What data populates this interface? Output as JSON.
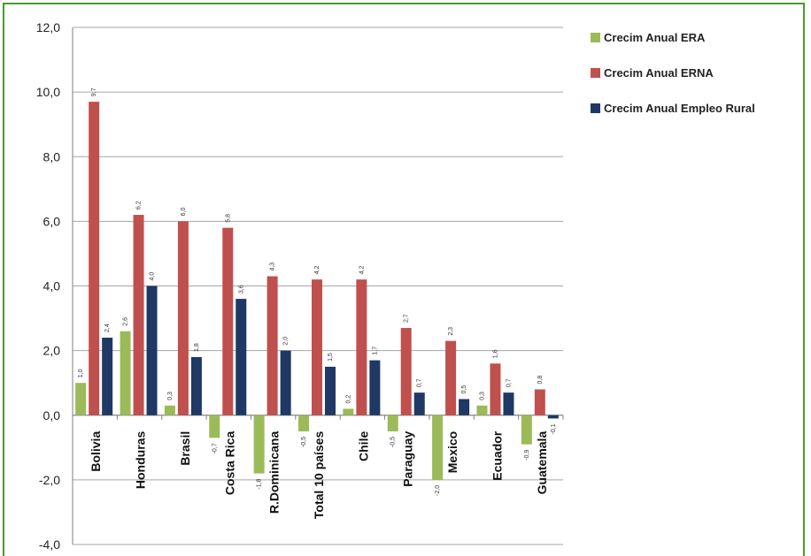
{
  "chart_data": {
    "type": "bar",
    "categories": [
      "Bolivia",
      "Honduras",
      "Brasil",
      "Costa Rica",
      "R.Dominicana",
      "Total 10 países",
      "Chile",
      "Paraguay",
      "Mexico",
      "Ecuador",
      "Guatemala"
    ],
    "series": [
      {
        "name": "Crecim Anual ERA",
        "color": "#9bbb59",
        "values": [
          1.0,
          2.6,
          0.3,
          -0.7,
          -1.8,
          -0.5,
          0.2,
          -0.5,
          -2.0,
          0.3,
          -0.9
        ],
        "labels": [
          "1,0",
          "2,6",
          "0,3",
          "-0,7",
          "-1,8",
          "-0,5",
          "0,2",
          "-0,5",
          "-2,0",
          "0,3",
          "-0,9"
        ]
      },
      {
        "name": "Crecim Anual ERNA",
        "color": "#c0504d",
        "values": [
          9.7,
          6.2,
          6.0,
          5.8,
          4.3,
          4.2,
          4.2,
          2.7,
          2.3,
          1.6,
          0.8
        ],
        "labels": [
          "9,7",
          "6,2",
          "6,0",
          "5,8",
          "4,3",
          "4,2",
          "4,2",
          "2,7",
          "2,3",
          "1,6",
          "0,8"
        ]
      },
      {
        "name": "Crecim Anual Empleo Rural",
        "color": "#1f3864",
        "values": [
          2.4,
          4.0,
          1.8,
          3.6,
          2.0,
          1.5,
          1.7,
          0.7,
          0.5,
          0.7,
          -0.1
        ],
        "labels": [
          "2,4",
          "4,0",
          "1,8",
          "3,6",
          "2,0",
          "1,5",
          "1,7",
          "0,7",
          "0,5",
          "0,7",
          "-0,1"
        ]
      }
    ],
    "ylim": [
      -4.0,
      12.0
    ],
    "yticks": [
      -4.0,
      -2.0,
      0.0,
      2.0,
      4.0,
      6.0,
      8.0,
      10.0,
      12.0
    ],
    "ytick_labels": [
      "-4,0",
      "-2,0",
      "0,0",
      "2,0",
      "4,0",
      "6,0",
      "8,0",
      "10,0",
      "12,0"
    ],
    "grid": true,
    "legend": "top-right",
    "title": "",
    "xlabel": "",
    "ylabel": ""
  }
}
